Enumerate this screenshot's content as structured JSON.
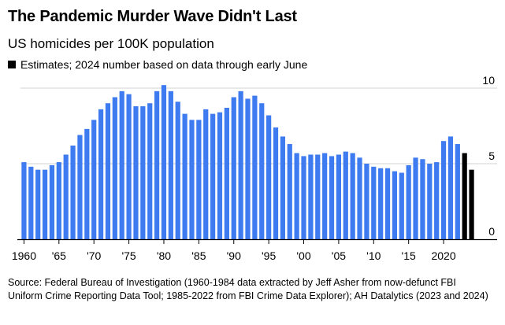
{
  "header": {
    "title": "The Pandemic Murder Wave Didn't Last",
    "subtitle": "US homicides per 100K population",
    "legend_label": "Estimates; 2024 number based on data through early June"
  },
  "footer": {
    "source": "Source: Federal Bureau of Investigation (1960-1984 data extracted by Jeff Asher from now-defunct FBI Uniform Crime Reporting Data Tool; 1985-2022 from FBI Crime Data Explorer); AH Datalytics (2023 and 2024)"
  },
  "colors": {
    "bar": "#3e7bf0",
    "estimate": "#000000",
    "grid": "#d0d0d0",
    "axis": "#000000"
  },
  "chart_data": {
    "type": "bar",
    "title": "The Pandemic Murder Wave Didn't Last",
    "subtitle": "US homicides per 100K population",
    "x_start": 1960,
    "x_end": 2024,
    "x_tick_values": [
      1960,
      1965,
      1970,
      1975,
      1980,
      1985,
      1990,
      1995,
      2000,
      2005,
      2010,
      2015,
      2020
    ],
    "x_tick_labels": [
      "1960",
      "'65",
      "'70",
      "'75",
      "'80",
      "'85",
      "'90",
      "'95",
      "'00",
      "'05",
      "'10",
      "'15",
      "2020"
    ],
    "y_ticks": [
      0,
      5,
      10
    ],
    "y_tick_labels": [
      "0",
      "5",
      "10"
    ],
    "ylim": [
      0,
      10
    ],
    "grid": true,
    "series": [
      {
        "values": [
          5.1,
          4.8,
          4.6,
          4.6,
          4.9,
          5.1,
          5.6,
          6.2,
          6.9,
          7.3,
          7.9,
          8.6,
          9.0,
          9.4,
          9.8,
          9.6,
          8.8,
          8.8,
          9.0,
          9.8,
          10.2,
          9.8,
          9.1,
          8.3,
          7.9,
          7.9,
          8.6,
          8.3,
          8.4,
          8.7,
          9.4,
          9.8,
          9.3,
          9.5,
          9.0,
          8.2,
          7.4,
          6.8,
          6.3,
          5.7,
          5.5,
          5.6,
          5.6,
          5.7,
          5.5,
          5.6,
          5.8,
          5.7,
          5.4,
          5.0,
          4.8,
          4.7,
          4.7,
          4.5,
          4.4,
          4.9,
          5.4,
          5.3,
          5.0,
          5.1,
          6.5,
          6.8,
          6.3
        ]
      },
      {
        "name": "Estimates; 2024 number based on data through early June",
        "x": [
          2023,
          2024
        ],
        "values": [
          5.7,
          4.6
        ]
      }
    ]
  }
}
